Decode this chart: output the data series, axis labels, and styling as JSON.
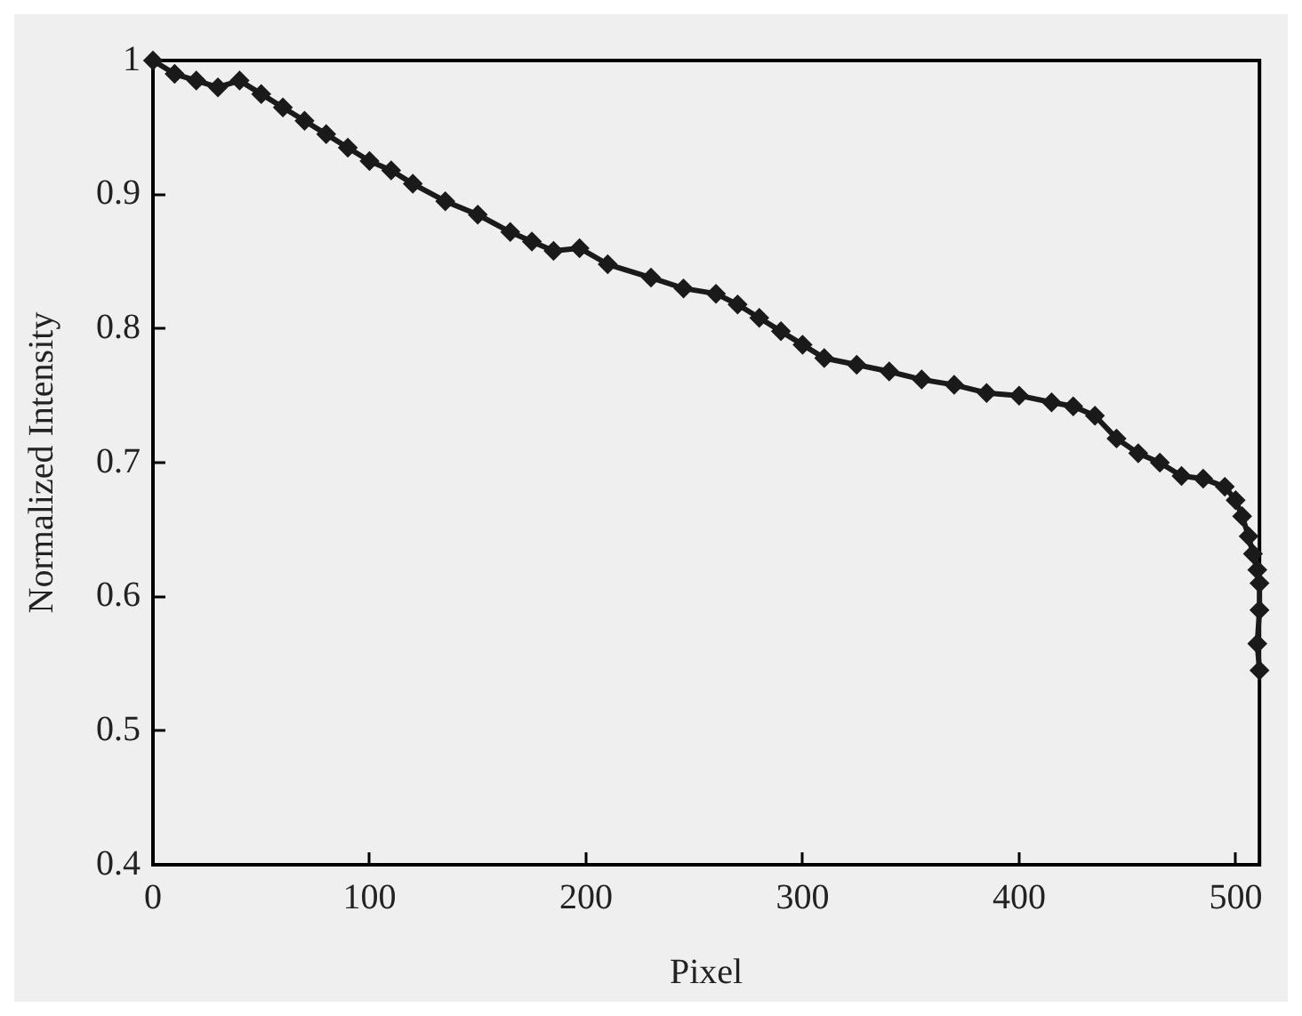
{
  "chart_data": {
    "type": "line",
    "xlabel": "Pixel",
    "ylabel": "Normalized Intensity",
    "marker": "diamond",
    "grid": false,
    "legend": false,
    "xlim": [
      0,
      511
    ],
    "xticks": [
      0,
      100,
      200,
      300,
      400,
      500
    ],
    "ylim": [
      0.4,
      1
    ],
    "yticks": [
      0.4,
      0.5,
      0.6,
      0.7,
      0.8,
      0.9,
      1
    ],
    "series": [
      {
        "color": "#1a1a1a",
        "x": [
          0,
          10,
          20,
          30,
          40,
          50,
          60,
          70,
          80,
          90,
          100,
          110,
          120,
          135,
          150,
          165,
          175,
          185,
          197,
          210,
          230,
          245,
          260,
          270,
          280,
          290,
          300,
          310,
          325,
          340,
          355,
          370,
          385,
          400,
          415,
          425,
          435,
          445,
          455,
          465,
          475,
          485,
          495,
          500,
          503,
          506,
          508,
          510,
          511,
          511,
          510,
          511
        ],
        "values": [
          1.0,
          0.99,
          0.985,
          0.98,
          0.985,
          0.975,
          0.965,
          0.955,
          0.945,
          0.935,
          0.925,
          0.918,
          0.908,
          0.895,
          0.885,
          0.872,
          0.865,
          0.858,
          0.86,
          0.848,
          0.838,
          0.83,
          0.826,
          0.818,
          0.808,
          0.798,
          0.788,
          0.778,
          0.773,
          0.768,
          0.762,
          0.758,
          0.752,
          0.75,
          0.745,
          0.742,
          0.735,
          0.718,
          0.707,
          0.7,
          0.69,
          0.688,
          0.682,
          0.672,
          0.66,
          0.645,
          0.632,
          0.62,
          0.61,
          0.59,
          0.565,
          0.545
        ]
      }
    ]
  }
}
